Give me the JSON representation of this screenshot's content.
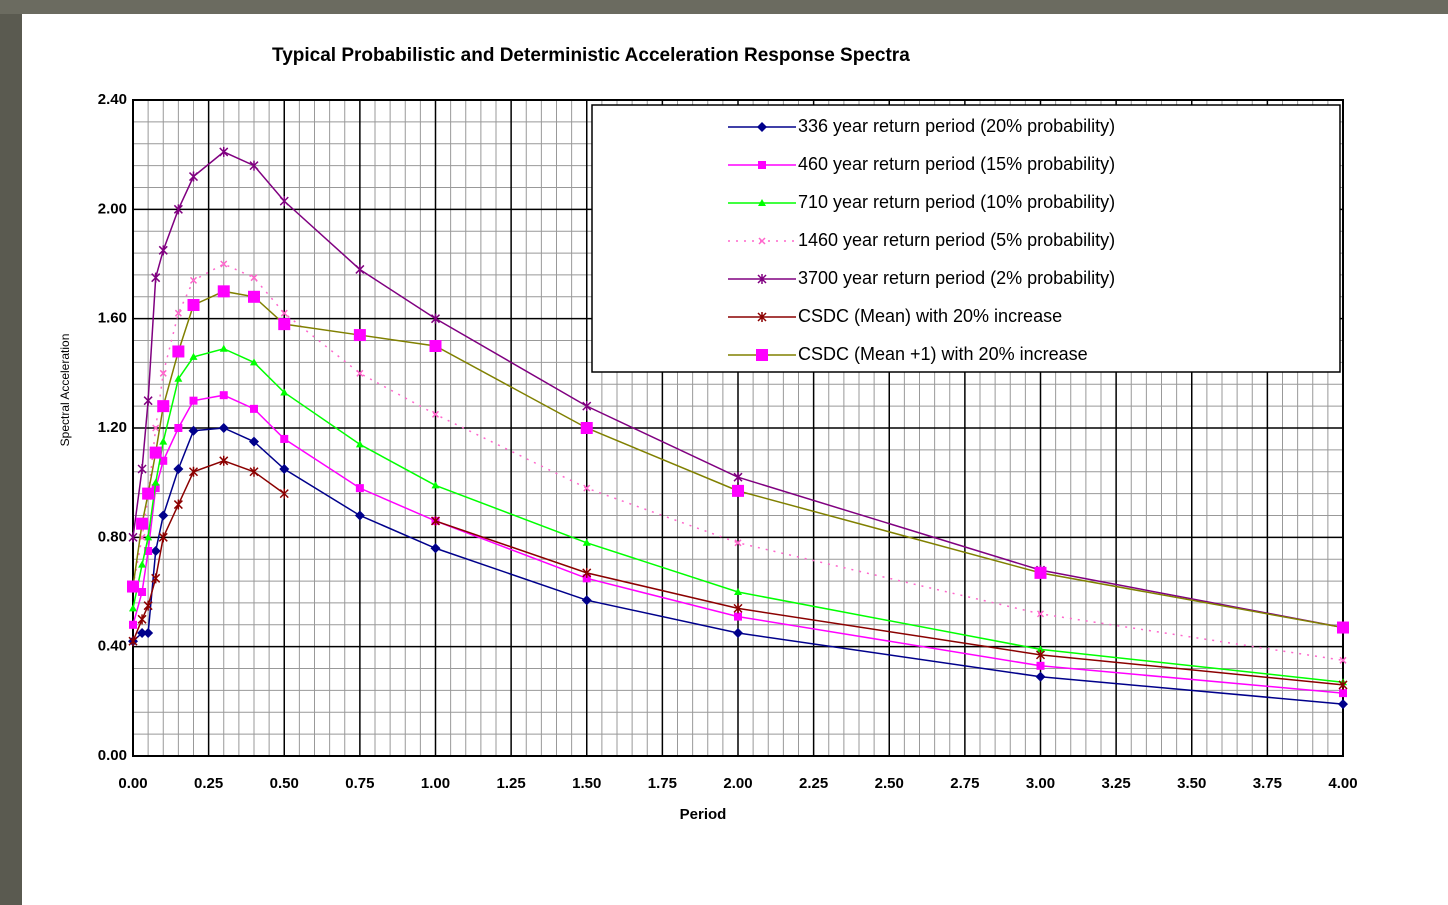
{
  "chart_data": {
    "type": "line",
    "title": "Typical Probabilistic and Deterministic Acceleration Response Spectra",
    "x_label": "Period",
    "y_label": "Spectral Acceleration",
    "x": [
      0,
      0.03,
      0.05,
      0.075,
      0.1,
      0.15,
      0.2,
      0.3,
      0.4,
      0.5,
      0.75,
      1,
      1.5,
      2,
      3,
      4
    ],
    "series": [
      {
        "name": "336 year return period (20% probability)",
        "color": "#00008b",
        "marker": "diamond",
        "dash": "solid",
        "values": [
          0.42,
          0.45,
          0.45,
          0.75,
          0.88,
          1.05,
          1.19,
          1.2,
          1.15,
          1.05,
          0.88,
          0.76,
          0.57,
          0.45,
          0.29,
          0.19
        ]
      },
      {
        "name": "460 year return period (15% probability)",
        "color": "#ff00ff",
        "marker": "square",
        "dash": "solid",
        "values": [
          0.48,
          0.6,
          0.75,
          0.98,
          1.08,
          1.2,
          1.3,
          1.32,
          1.27,
          1.16,
          0.98,
          0.86,
          0.65,
          0.51,
          0.33,
          0.23
        ]
      },
      {
        "name": "710 year return period (10% probability)",
        "color": "#00ff00",
        "marker": "triangle",
        "dash": "solid",
        "values": [
          0.54,
          0.7,
          0.8,
          1.0,
          1.15,
          1.38,
          1.46,
          1.49,
          1.44,
          1.33,
          1.14,
          0.99,
          0.78,
          0.6,
          0.39,
          0.27
        ]
      },
      {
        "name": "1460 year return period (5% probability)",
        "color": "#ff66cc",
        "marker": "x",
        "dash": "dotted",
        "values": [
          0.62,
          0.8,
          0.95,
          1.2,
          1.4,
          1.62,
          1.74,
          1.8,
          1.75,
          1.62,
          1.4,
          1.25,
          0.98,
          0.78,
          0.52,
          0.35
        ]
      },
      {
        "name": "3700 year return period (2% probability)",
        "color": "#800080",
        "marker": "star",
        "dash": "solid",
        "values": [
          0.8,
          1.05,
          1.3,
          1.75,
          1.85,
          2.0,
          2.12,
          2.21,
          2.16,
          2.03,
          1.78,
          1.6,
          1.28,
          1.02,
          0.68,
          0.47
        ]
      },
      {
        "name": "CSDC (Mean) with 20% increase",
        "color": "#8b0000",
        "marker": "star",
        "dash": "solid",
        "values": [
          0.42,
          0.5,
          0.55,
          0.65,
          0.8,
          0.92,
          1.04,
          1.08,
          1.04,
          0.96,
          null,
          0.86,
          0.67,
          0.54,
          0.37,
          0.26
        ]
      },
      {
        "name": "CSDC (Mean +1) with 20% increase",
        "color": "#808000",
        "marker_color": "#ff00ff",
        "marker": "bigsquare",
        "dash": "solid",
        "values": [
          0.62,
          0.85,
          0.96,
          1.11,
          1.28,
          1.48,
          1.65,
          1.7,
          1.68,
          1.58,
          1.54,
          1.5,
          1.2,
          0.97,
          0.67,
          0.47
        ]
      }
    ],
    "xlim": [
      0,
      4
    ],
    "xticks": [
      {
        "value": 0,
        "label": "0.00"
      },
      {
        "value": 0.25,
        "label": "0.25"
      },
      {
        "value": 0.5,
        "label": "0.50"
      },
      {
        "value": 0.75,
        "label": "0.75"
      },
      {
        "value": 1,
        "label": "1.00"
      },
      {
        "value": 1.25,
        "label": "1.25"
      },
      {
        "value": 1.5,
        "label": "1.50"
      },
      {
        "value": 1.75,
        "label": "1.75"
      },
      {
        "value": 2,
        "label": "2.00"
      },
      {
        "value": 2.25,
        "label": "2.25"
      },
      {
        "value": 2.5,
        "label": "2.50"
      },
      {
        "value": 2.75,
        "label": "2.75"
      },
      {
        "value": 3,
        "label": "3.00"
      },
      {
        "value": 3.25,
        "label": "3.25"
      },
      {
        "value": 3.5,
        "label": "3.50"
      },
      {
        "value": 3.75,
        "label": "3.75"
      },
      {
        "value": 4,
        "label": "4.00"
      }
    ],
    "ylim": [
      0,
      2.4
    ],
    "yticks": [
      {
        "value": 0,
        "label": "0.00"
      },
      {
        "value": 0.4,
        "label": "0.40"
      },
      {
        "value": 0.8,
        "label": "0.80"
      },
      {
        "value": 1.2,
        "label": "1.20"
      },
      {
        "value": 1.6,
        "label": "1.60"
      },
      {
        "value": 2,
        "label": "2.00"
      },
      {
        "value": 2.4,
        "label": "2.40"
      }
    ],
    "grid": true,
    "legend": "top-right"
  }
}
